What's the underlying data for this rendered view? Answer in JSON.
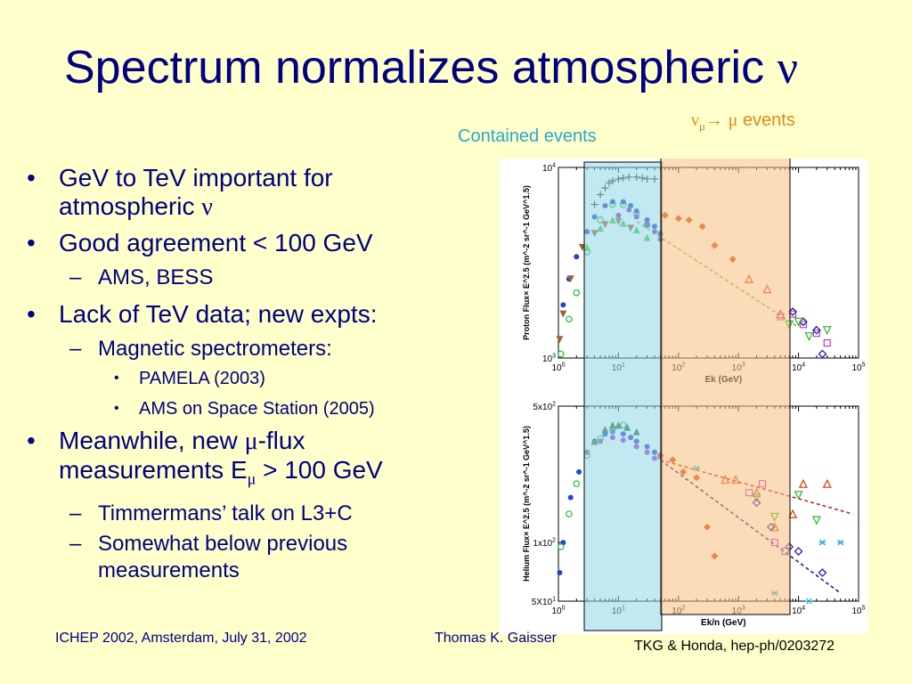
{
  "slide": {
    "title": "Spectrum normalizes atmospheric",
    "title_symbol": "ν",
    "bullets": {
      "b1_line1": "GeV to TeV important for",
      "b1_line2": "atmospheric",
      "b1_symbol": "ν",
      "b2": "Good agreement < 100 GeV",
      "b2_sub1": "AMS, BESS",
      "b3": "Lack of TeV data; new expts:",
      "b3_sub1": "Magnetic spectrometers:",
      "b3_sub1_item1": "PAMELA (2003)",
      "b3_sub1_item2": "AMS on Space Station (2005)",
      "b4_line1_a": "Meanwhile, new",
      "b4_line1_mu": "μ",
      "b4_line1_b": "-flux",
      "b4_line2_a": "measurements E",
      "b4_line2_sub": "μ",
      "b4_line2_b": " > 100 GeV",
      "b4_sub1": "Timmermans’ talk on L3+C",
      "b4_sub2_line1": "Somewhat below previous",
      "b4_sub2_line2": "measurements"
    },
    "bullet_char": "•",
    "dash_char": "–",
    "footer_left": "ICHEP 2002, Amsterdam, July 31, 2002",
    "footer_center": "Thomas K. Gaisser",
    "credit": "TKG & Honda, hep-ph/0203272",
    "labels": {
      "contained": "Contained events",
      "numu_nu": "ν",
      "numu_sub": "μ",
      "numu_arrow": "→",
      "numu_mu": "μ",
      "numu_events": "events"
    },
    "colors": {
      "title": "#000080",
      "background": "#ffffcc",
      "contained_box": "#8fd6e6",
      "numu_box": "#f7c07f",
      "contained_label": "#2aa9c8",
      "numu_label": "#e08a1c"
    }
  },
  "chart_data": [
    {
      "type": "scatter",
      "ylabel": "Proton Flux× E^2.5 (m^-2 sr^-1 GeV^1.5)",
      "xlabel": "Ek (GeV)",
      "x_scale": "log",
      "y_scale": "log",
      "xlim": [
        1,
        100000
      ],
      "ylim": [
        1000,
        10000
      ],
      "x_tick_labels": [
        "10^0",
        "10^1",
        "10^2",
        "10^3",
        "10^4",
        "10^5"
      ],
      "y_tick_labels": [
        "10^3",
        "10^4"
      ],
      "fit_line": {
        "x": [
          20,
          10000
        ],
        "y": [
          5200,
          1450
        ]
      },
      "series": [
        {
          "marker": "plus",
          "color": "#333333",
          "x": [
            4,
            5,
            6,
            7,
            8,
            10,
            12,
            15,
            20,
            25,
            30,
            40
          ],
          "y": [
            6400,
            7200,
            7800,
            8300,
            8500,
            8700,
            8800,
            8900,
            8900,
            8800,
            8700,
            8700
          ]
        },
        {
          "marker": "circle",
          "color": "#2fbf3f",
          "x": [
            1.1,
            1.5,
            2,
            3,
            5,
            8,
            12,
            20,
            30
          ],
          "y": [
            1050,
            1600,
            2200,
            3600,
            5300,
            6400,
            6400,
            5700,
            5000
          ]
        },
        {
          "marker": "dot",
          "color": "#2244cc",
          "x": [
            1.2,
            1.5,
            2,
            3,
            4,
            6,
            8,
            12,
            16,
            20,
            30,
            40,
            50
          ],
          "y": [
            1900,
            2600,
            3400,
            4600,
            5500,
            6300,
            6600,
            6600,
            6300,
            5900,
            5300,
            4900,
            4500
          ]
        },
        {
          "marker": "triangle",
          "color": "#44cc44",
          "x": [
            3,
            5,
            8,
            12,
            20,
            30
          ],
          "y": [
            3800,
            4800,
            5300,
            5100,
            4700,
            4300
          ]
        },
        {
          "marker": "triangle-down",
          "color": "#996633",
          "x": [
            1.05,
            1.2,
            1.6,
            2.5,
            4,
            6,
            10,
            16
          ],
          "y": [
            1250,
            1700,
            2600,
            3800,
            4500,
            5000,
            5200,
            4800
          ]
        },
        {
          "marker": "dot",
          "color": "#7a3cc8",
          "x": [
            10,
            15,
            20,
            30,
            40,
            50
          ],
          "y": [
            5600,
            6000,
            5500,
            5000,
            4600,
            4200
          ]
        },
        {
          "marker": "diamond",
          "color": "#dd4411",
          "x": [
            60,
            100,
            150,
            250,
            400,
            800
          ],
          "y": [
            5600,
            5400,
            5300,
            4900,
            3900,
            3300
          ]
        },
        {
          "marker": "triangle-open",
          "color": "#dd4411",
          "x": [
            1500,
            3000,
            5000
          ],
          "y": [
            2600,
            2300,
            1700
          ]
        },
        {
          "marker": "square-open",
          "color": "#cc33cc",
          "x": [
            5000,
            8000,
            12000,
            20000,
            30000
          ],
          "y": [
            1650,
            1700,
            1500,
            1350,
            1200
          ]
        },
        {
          "marker": "diamond-open",
          "color": "#2222aa",
          "x": [
            8000,
            12000,
            20000,
            25000
          ],
          "y": [
            1750,
            1550,
            1400,
            1050
          ]
        },
        {
          "marker": "triangle-down-open",
          "color": "#33bb33",
          "x": [
            7000,
            10000,
            15000,
            30000
          ],
          "y": [
            1500,
            1550,
            1300,
            1400
          ]
        }
      ]
    },
    {
      "type": "scatter",
      "ylabel": "Helium Flux× E^2.5 (m^-2 sr^-1 GeV^1.5)",
      "xlabel": "Ek/n (GeV)",
      "x_scale": "log",
      "y_scale": "log",
      "xlim": [
        1,
        100000
      ],
      "ylim": [
        50,
        500
      ],
      "x_tick_labels": [
        "10^0",
        "10^1",
        "10^2",
        "10^3",
        "10^4",
        "10^5"
      ],
      "y_tick_labels": [
        "5X10^1",
        "1x10^2",
        "5x10^2"
      ],
      "fit_lines": [
        {
          "color": "#cc2222",
          "x": [
            50,
            80000
          ],
          "y": [
            265,
            140
          ]
        },
        {
          "color": "#222288",
          "x": [
            50,
            50000
          ],
          "y": [
            265,
            55
          ]
        }
      ],
      "series": [
        {
          "marker": "dot",
          "color": "#2244cc",
          "x": [
            1.05,
            1.2,
            1.6,
            2.2,
            3,
            4,
            6,
            8,
            12,
            16,
            20,
            30,
            40,
            50
          ],
          "y": [
            70,
            100,
            170,
            230,
            290,
            330,
            360,
            370,
            360,
            345,
            330,
            310,
            290,
            275
          ]
        },
        {
          "marker": "dot",
          "color": "#aa33cc",
          "x": [
            3,
            5,
            8,
            12,
            20,
            30,
            40
          ],
          "y": [
            290,
            330,
            345,
            335,
            310,
            290,
            270
          ]
        },
        {
          "marker": "circle",
          "color": "#2fbf3f",
          "x": [
            1.1,
            1.5,
            2,
            3,
            5,
            8,
            12
          ],
          "y": [
            95,
            140,
            200,
            280,
            340,
            380,
            400
          ]
        },
        {
          "marker": "triangle",
          "color": "#2f6f3f",
          "x": [
            4,
            6,
            8,
            10,
            14,
            20
          ],
          "y": [
            330,
            380,
            400,
            400,
            390,
            370
          ]
        },
        {
          "marker": "diamond",
          "color": "#dd4411",
          "x": [
            50,
            80,
            120,
            200,
            300,
            400
          ],
          "y": [
            280,
            265,
            230,
            215,
            120,
            85
          ]
        },
        {
          "marker": "triangle-open",
          "color": "#dd4411",
          "x": [
            600,
            900,
            2000,
            4000,
            8000,
            12000,
            30000
          ],
          "y": [
            210,
            210,
            180,
            120,
            140,
            200,
            200
          ]
        },
        {
          "marker": "triangle-down-open",
          "color": "#33bb33",
          "x": [
            2000,
            4000,
            10000,
            20000
          ],
          "y": [
            170,
            135,
            175,
            130
          ]
        },
        {
          "marker": "square-open",
          "color": "#cc33cc",
          "x": [
            1500,
            2500,
            4000,
            6000
          ],
          "y": [
            180,
            200,
            100,
            90
          ]
        },
        {
          "marker": "diamond-open",
          "color": "#2222aa",
          "x": [
            2000,
            3500,
            7000,
            10000,
            25000
          ],
          "y": [
            160,
            120,
            95,
            90,
            70
          ]
        },
        {
          "marker": "star",
          "color": "#22aacc",
          "x": [
            200,
            4000,
            15000,
            25000,
            50000
          ],
          "y": [
            240,
            55,
            50,
            100,
            100
          ]
        }
      ]
    }
  ]
}
